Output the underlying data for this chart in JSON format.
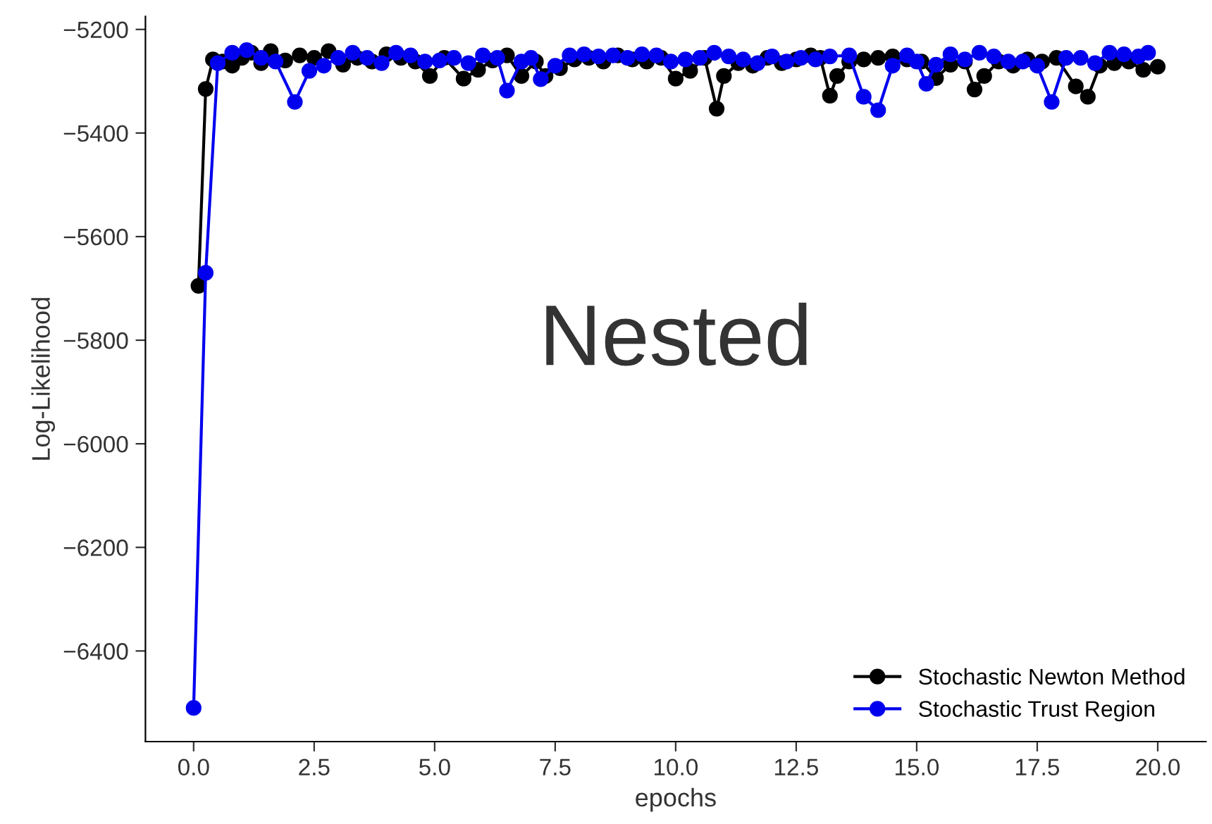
{
  "chart_data": {
    "type": "line",
    "xlabel": "epochs",
    "ylabel": "Log-Likelihood",
    "annotations": [
      "Nested"
    ],
    "xlim": [
      -1.0,
      21.0
    ],
    "ylim": [
      -6575,
      -5175
    ],
    "xticks": [
      {
        "value": 0,
        "label": "0.0"
      },
      {
        "value": 2.5,
        "label": "2.5"
      },
      {
        "value": 5,
        "label": "5.0"
      },
      {
        "value": 7.5,
        "label": "7.5"
      },
      {
        "value": 10,
        "label": "10.0"
      },
      {
        "value": 12.5,
        "label": "12.5"
      },
      {
        "value": 15,
        "label": "15.0"
      },
      {
        "value": 17.5,
        "label": "17.5"
      },
      {
        "value": 20,
        "label": "20.0"
      }
    ],
    "yticks": [
      -6400,
      -6200,
      -6000,
      -5800,
      -5600,
      -5400,
      -5200
    ],
    "grid": false,
    "legend": "bottom right",
    "marker": "circle",
    "line_style": "solid",
    "series": [
      {
        "name": "Stochastic Newton Method",
        "color": "#000000",
        "x": [
          0.1,
          0.25,
          0.4,
          0.6,
          0.8,
          1.0,
          1.2,
          1.4,
          1.6,
          1.9,
          2.2,
          2.5,
          2.8,
          3.1,
          3.4,
          3.7,
          4.0,
          4.3,
          4.6,
          4.9,
          5.2,
          5.6,
          5.9,
          6.2,
          6.5,
          6.8,
          7.1,
          7.3,
          7.6,
          7.9,
          8.2,
          8.5,
          8.8,
          9.1,
          9.4,
          9.7,
          10.0,
          10.3,
          10.6,
          10.85,
          11.0,
          11.3,
          11.6,
          11.9,
          12.2,
          12.5,
          12.8,
          13.0,
          13.2,
          13.35,
          13.6,
          13.9,
          14.2,
          14.5,
          14.8,
          15.1,
          15.4,
          15.7,
          16.0,
          16.2,
          16.4,
          16.7,
          17.0,
          17.3,
          17.6,
          17.9,
          18.3,
          18.55,
          18.8,
          19.1,
          19.4,
          19.7,
          20.0
        ],
        "values": [
          -5695,
          -5315,
          -5258,
          -5262,
          -5270,
          -5255,
          -5245,
          -5265,
          -5242,
          -5260,
          -5250,
          -5255,
          -5242,
          -5268,
          -5255,
          -5262,
          -5248,
          -5255,
          -5262,
          -5290,
          -5255,
          -5295,
          -5278,
          -5260,
          -5250,
          -5290,
          -5262,
          -5290,
          -5275,
          -5258,
          -5255,
          -5262,
          -5250,
          -5258,
          -5262,
          -5255,
          -5295,
          -5280,
          -5255,
          -5353,
          -5290,
          -5265,
          -5270,
          -5255,
          -5265,
          -5258,
          -5250,
          -5255,
          -5328,
          -5290,
          -5262,
          -5258,
          -5255,
          -5252,
          -5258,
          -5262,
          -5294,
          -5268,
          -5262,
          -5316,
          -5290,
          -5262,
          -5270,
          -5258,
          -5262,
          -5255,
          -5310,
          -5330,
          -5270,
          -5265,
          -5262,
          -5278,
          -5272
        ]
      },
      {
        "name": "Stochastic Trust Region",
        "color": "#0000ee",
        "x": [
          0.0,
          0.25,
          0.5,
          0.8,
          1.1,
          1.4,
          1.7,
          2.1,
          2.4,
          2.7,
          3.0,
          3.3,
          3.6,
          3.9,
          4.2,
          4.5,
          4.8,
          5.1,
          5.4,
          5.7,
          6.0,
          6.3,
          6.5,
          6.8,
          7.0,
          7.2,
          7.5,
          7.8,
          8.1,
          8.4,
          8.7,
          9.0,
          9.3,
          9.6,
          9.9,
          10.2,
          10.5,
          10.8,
          11.1,
          11.4,
          11.7,
          12.0,
          12.3,
          12.6,
          12.9,
          13.2,
          13.6,
          13.9,
          14.2,
          14.5,
          14.8,
          15.0,
          15.2,
          15.4,
          15.7,
          16.0,
          16.3,
          16.6,
          16.9,
          17.2,
          17.5,
          17.8,
          18.1,
          18.4,
          18.7,
          19.0,
          19.3,
          19.6,
          19.8
        ],
        "values": [
          -6510,
          -5670,
          -5265,
          -5245,
          -5240,
          -5255,
          -5262,
          -5340,
          -5280,
          -5270,
          -5255,
          -5245,
          -5255,
          -5265,
          -5245,
          -5250,
          -5262,
          -5260,
          -5255,
          -5265,
          -5250,
          -5255,
          -5318,
          -5262,
          -5255,
          -5296,
          -5270,
          -5250,
          -5248,
          -5252,
          -5250,
          -5255,
          -5248,
          -5250,
          -5262,
          -5258,
          -5255,
          -5245,
          -5252,
          -5258,
          -5265,
          -5252,
          -5262,
          -5255,
          -5258,
          -5252,
          -5250,
          -5330,
          -5356,
          -5270,
          -5250,
          -5262,
          -5305,
          -5268,
          -5248,
          -5258,
          -5245,
          -5252,
          -5262,
          -5262,
          -5270,
          -5340,
          -5255,
          -5255,
          -5265,
          -5245,
          -5248,
          -5252,
          -5245
        ]
      }
    ]
  }
}
